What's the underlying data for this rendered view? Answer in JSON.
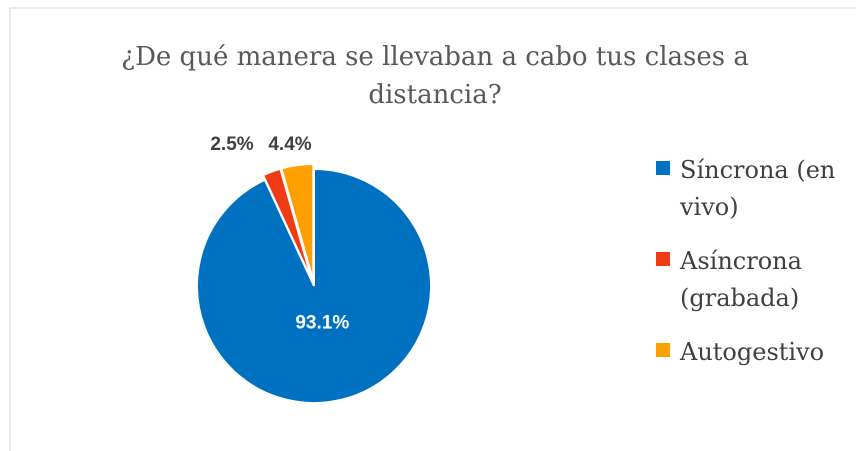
{
  "chart_data": {
    "type": "pie",
    "title": "¿De qué manera se llevaban a cabo tus clases a distancia?",
    "categories": [
      "Síncrona (en vivo)",
      "Asíncrona (grabada)",
      "Autogestivo"
    ],
    "values": [
      93.1,
      2.5,
      4.4
    ],
    "value_labels": [
      "93.1%",
      "2.5%",
      "4.4%"
    ],
    "colors": [
      "#0070c0",
      "#f03c14",
      "#ffa000"
    ],
    "legend": "right"
  }
}
